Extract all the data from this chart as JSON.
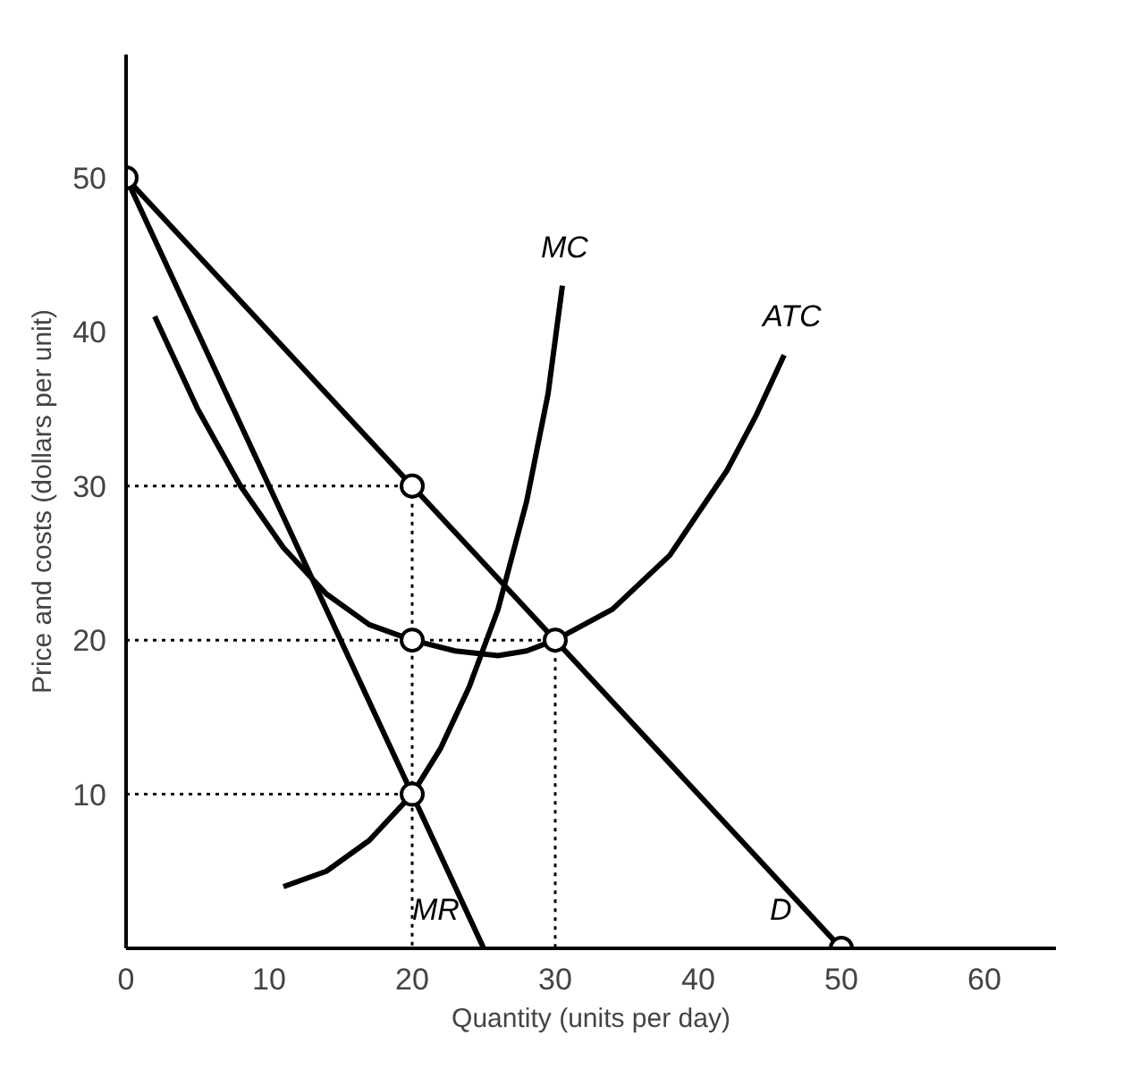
{
  "chart_data": {
    "type": "line",
    "xlabel": "Quantity (units per day)",
    "ylabel": "Price and costs (dollars per unit)",
    "xlim": [
      0,
      65
    ],
    "ylim": [
      0,
      58
    ],
    "xticks": [
      0,
      10,
      20,
      30,
      40,
      50,
      60
    ],
    "yticks": [
      10,
      20,
      30,
      40,
      50
    ],
    "grid": false,
    "marker": "none",
    "line_style": "solid",
    "series": [
      {
        "name": "D",
        "color": "#000000",
        "x": [
          0,
          50
        ],
        "values": [
          50,
          0
        ]
      },
      {
        "name": "MR",
        "color": "#000000",
        "x": [
          0,
          25
        ],
        "values": [
          50,
          0
        ]
      },
      {
        "name": "MC",
        "color": "#000000",
        "x": [
          11,
          14,
          17,
          20,
          22,
          24,
          26,
          28,
          29.5,
          30.5
        ],
        "values": [
          4,
          5,
          7,
          10,
          13,
          17,
          22,
          29,
          36,
          43
        ]
      },
      {
        "name": "ATC",
        "color": "#000000",
        "x": [
          2,
          5,
          8,
          11,
          14,
          17,
          20,
          23,
          26,
          28,
          30,
          34,
          38,
          42,
          44,
          46
        ],
        "values": [
          41,
          35,
          30,
          26,
          23,
          21,
          20,
          19.3,
          19,
          19.3,
          20,
          22,
          25.5,
          31,
          34.5,
          38.5
        ]
      },
      {
        "color": "#000000",
        "line_style": "dotted",
        "x": [
          0,
          20,
          20
        ],
        "values": [
          30,
          30,
          0
        ]
      },
      {
        "color": "#000000",
        "line_style": "dotted",
        "x": [
          0,
          30,
          30
        ],
        "values": [
          20,
          20,
          0
        ]
      },
      {
        "color": "#000000",
        "line_style": "dotted",
        "x": [
          0,
          20
        ],
        "values": [
          10,
          10
        ]
      },
      {
        "type": "scatter",
        "marker": "circle",
        "color": "#000000",
        "x": [
          0,
          20,
          20,
          20,
          30,
          50
        ],
        "values": [
          50,
          30,
          20,
          10,
          20,
          0
        ]
      }
    ]
  }
}
